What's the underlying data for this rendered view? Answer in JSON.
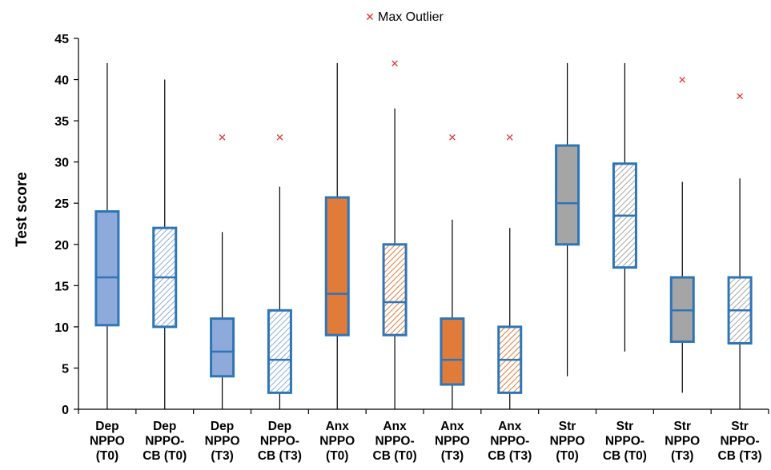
{
  "chart_data": {
    "type": "box",
    "title": "",
    "xlabel": "",
    "ylabel": "Test score",
    "ylim": [
      0,
      45
    ],
    "yticks": [
      0,
      5,
      10,
      15,
      20,
      25,
      30,
      35,
      40,
      45
    ],
    "grid": false,
    "legend": {
      "position": "top-center",
      "entries": [
        {
          "label": "Max Outlier",
          "marker": "x",
          "color": "#e03030"
        }
      ]
    },
    "colors": {
      "Dep": "#8eaadb",
      "Anx": "#e07b39",
      "Str": "#a5a5a5",
      "box_border": "#2e75b6",
      "whisker": "#000000",
      "outlier": "#e03030"
    },
    "categories": [
      {
        "lines": [
          "Dep",
          "NPPO",
          "(T0)"
        ],
        "group": "Dep",
        "pattern": "solid"
      },
      {
        "lines": [
          "Dep",
          "NPPO-",
          "CB (T0)"
        ],
        "group": "Dep",
        "pattern": "hatched"
      },
      {
        "lines": [
          "Dep",
          "NPPO",
          "(T3)"
        ],
        "group": "Dep",
        "pattern": "solid"
      },
      {
        "lines": [
          "Dep",
          "NPPO-",
          "CB (T3)"
        ],
        "group": "Dep",
        "pattern": "hatched"
      },
      {
        "lines": [
          "Anx",
          "NPPO",
          "(T0)"
        ],
        "group": "Anx",
        "pattern": "solid"
      },
      {
        "lines": [
          "Anx",
          "NPPO-",
          "CB (T0)"
        ],
        "group": "Anx",
        "pattern": "hatched"
      },
      {
        "lines": [
          "Anx",
          "NPPO",
          "(T3)"
        ],
        "group": "Anx",
        "pattern": "solid"
      },
      {
        "lines": [
          "Anx",
          "NPPO-",
          "CB (T3)"
        ],
        "group": "Anx",
        "pattern": "hatched"
      },
      {
        "lines": [
          "Str",
          "NPPO",
          "(T0)"
        ],
        "group": "Str",
        "pattern": "solid"
      },
      {
        "lines": [
          "Str",
          "NPPO-",
          "CB (T0)"
        ],
        "group": "Str",
        "pattern": "hatched"
      },
      {
        "lines": [
          "Str",
          "NPPO",
          "(T3)"
        ],
        "group": "Str",
        "pattern": "solid"
      },
      {
        "lines": [
          "Str",
          "NPPO-",
          "CB (T3)"
        ],
        "group": "Str",
        "pattern": "hatched"
      }
    ],
    "boxes": [
      {
        "min": 0,
        "q1": 10.2,
        "median": 16,
        "q3": 24,
        "max": 42,
        "outlier": null
      },
      {
        "min": 0,
        "q1": 10,
        "median": 16,
        "q3": 22,
        "max": 40,
        "outlier": null
      },
      {
        "min": 0,
        "q1": 4,
        "median": 7,
        "q3": 11,
        "max": 21.5,
        "outlier": 33
      },
      {
        "min": 0,
        "q1": 2,
        "median": 6,
        "q3": 12,
        "max": 27,
        "outlier": 33
      },
      {
        "min": 0,
        "q1": 9,
        "median": 14,
        "q3": 25.7,
        "max": 42,
        "outlier": null
      },
      {
        "min": 0,
        "q1": 9,
        "median": 13,
        "q3": 20,
        "max": 36.5,
        "outlier": 42
      },
      {
        "min": 0,
        "q1": 3,
        "median": 6,
        "q3": 11,
        "max": 23,
        "outlier": 33
      },
      {
        "min": 0,
        "q1": 2,
        "median": 6,
        "q3": 10,
        "max": 22,
        "outlier": 33
      },
      {
        "min": 4,
        "q1": 20,
        "median": 25,
        "q3": 32,
        "max": 42,
        "outlier": null
      },
      {
        "min": 7,
        "q1": 17.2,
        "median": 23.5,
        "q3": 29.8,
        "max": 42,
        "outlier": null
      },
      {
        "min": 2,
        "q1": 8.2,
        "median": 12,
        "q3": 16,
        "max": 27.6,
        "outlier": 40
      },
      {
        "min": 0,
        "q1": 8,
        "median": 12,
        "q3": 16,
        "max": 28,
        "outlier": 38
      }
    ]
  }
}
